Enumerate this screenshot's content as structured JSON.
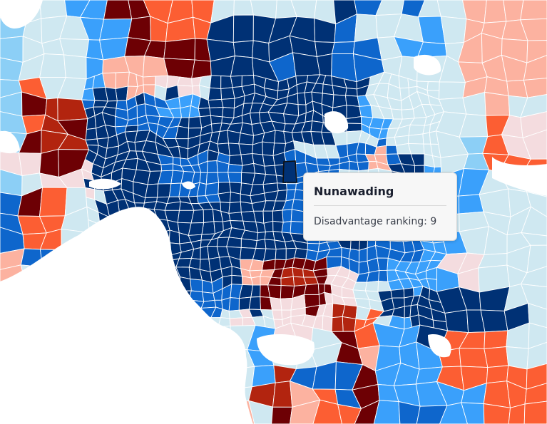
{
  "palette": {
    "c1": "#6d0004",
    "c2": "#b2240f",
    "c3": "#fc5e33",
    "c4": "#fcb2a0",
    "c5": "#f4dcdf",
    "c6": "#cfe8f1",
    "c7": "#8ccff6",
    "c8": "#3aa0fb",
    "c9": "#0e66cc",
    "c10": "#003175",
    "water": "#ffffff",
    "border": "#ffffff"
  },
  "tooltip": {
    "suburb": "Nunawading",
    "label": "Disadvantage ranking",
    "value": "9"
  }
}
